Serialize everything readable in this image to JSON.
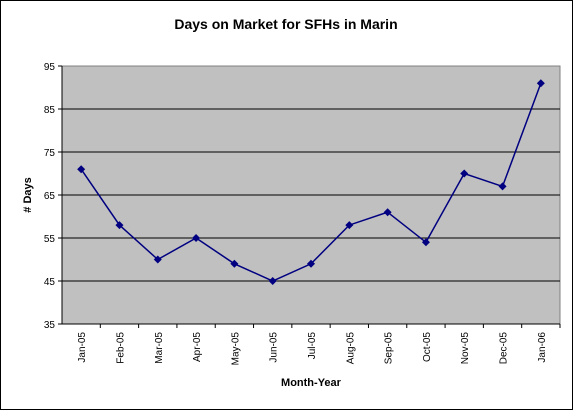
{
  "chart_data": {
    "type": "line",
    "title": "Days on Market for SFHs in Marin",
    "xlabel": "Month-Year",
    "ylabel": "# Days",
    "ylim": [
      35,
      95
    ],
    "yticks": [
      35,
      45,
      55,
      65,
      75,
      85,
      95
    ],
    "grid": true,
    "legend": "none",
    "categories": [
      "Jan-05",
      "Feb-05",
      "Mar-05",
      "Apr-05",
      "May-05",
      "Jun-05",
      "Jul-05",
      "Aug-05",
      "Sep-05",
      "Oct-05",
      "Nov-05",
      "Dec-05",
      "Jan-06"
    ],
    "series": [
      {
        "values": [
          71,
          58,
          50,
          55,
          49,
          45,
          49,
          58,
          61,
          54,
          70,
          67,
          91
        ]
      }
    ],
    "colors": {
      "plot_background": "#c0c0c0",
      "line": "#000080",
      "grid": "#000000"
    }
  }
}
